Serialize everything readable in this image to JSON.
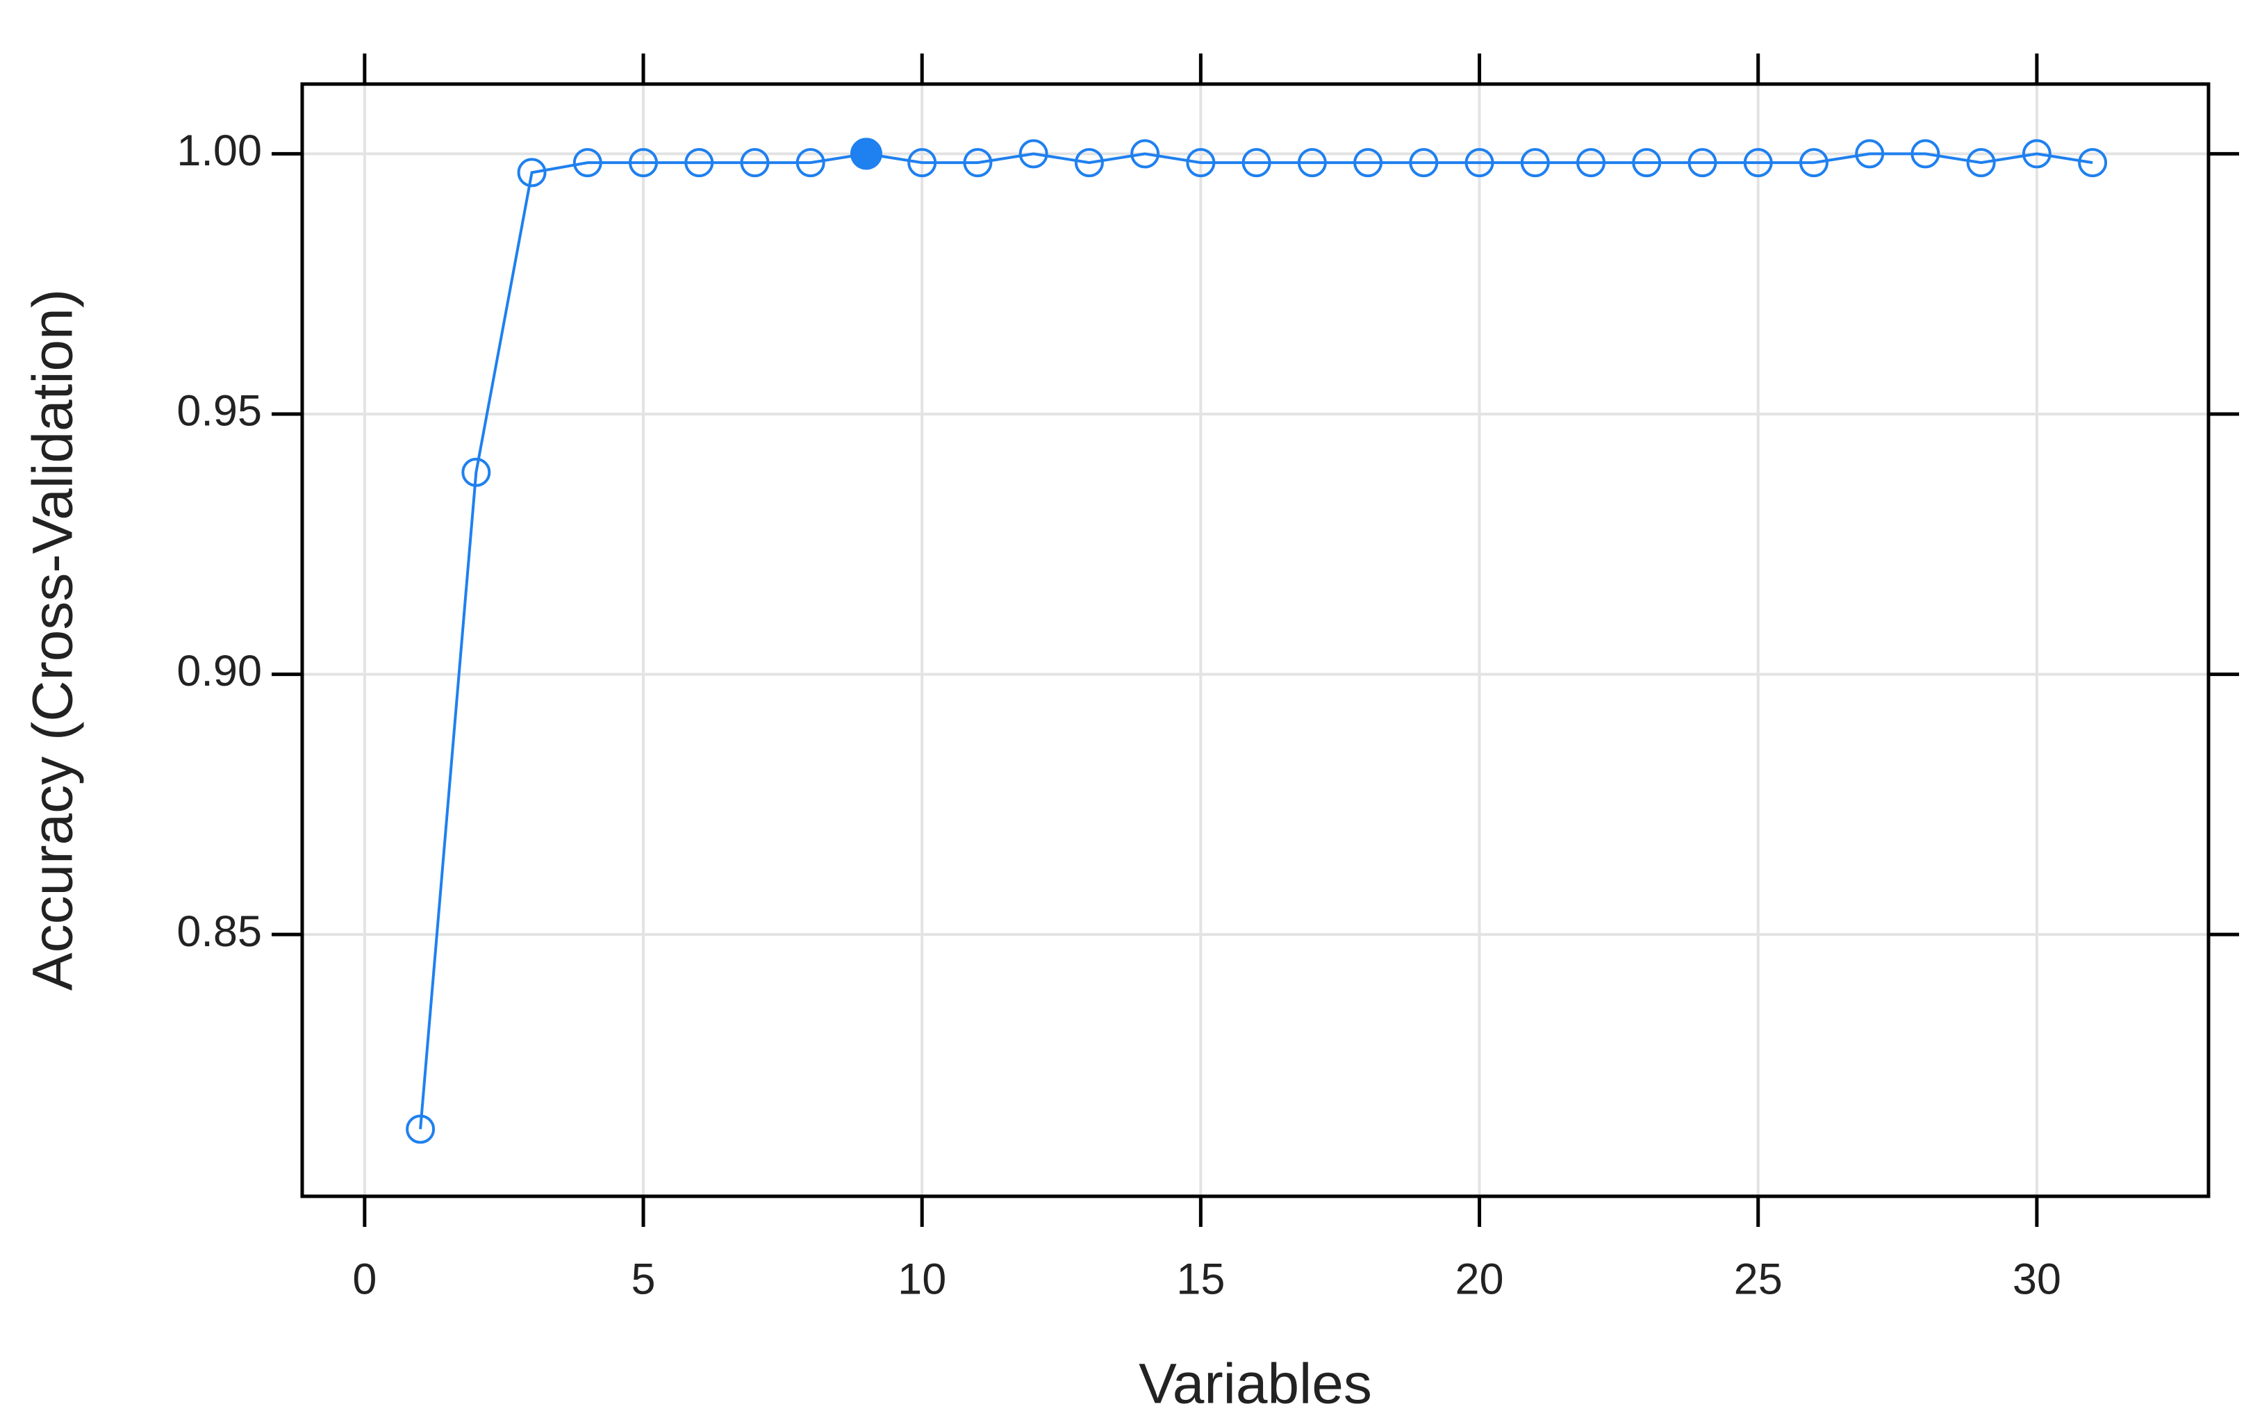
{
  "chart_data": {
    "type": "line",
    "x_label": "Variables",
    "y_label": "Accuracy (Cross-Validation)",
    "x": [
      1,
      2,
      3,
      4,
      5,
      6,
      7,
      8,
      9,
      10,
      11,
      12,
      13,
      14,
      15,
      16,
      17,
      18,
      19,
      20,
      21,
      22,
      23,
      24,
      25,
      26,
      27,
      28,
      29,
      30,
      31
    ],
    "series": [
      {
        "name": "Accuracy",
        "color": "#1f80ef",
        "values": [
          0.8126,
          0.9388,
          0.9964,
          0.9983,
          0.9983,
          0.9983,
          0.9983,
          0.9983,
          1.0,
          0.9983,
          0.9983,
          1.0,
          0.9983,
          1.0,
          0.9983,
          0.9983,
          0.9983,
          0.9983,
          0.9983,
          0.9983,
          0.9983,
          0.9983,
          0.9983,
          0.9983,
          0.9983,
          0.9983,
          1.0,
          1.0,
          0.9983,
          1.0,
          0.9983
        ],
        "selected_x": 9
      }
    ],
    "xlim": [
      -1.12,
      33.08
    ],
    "ylim": [
      0.7997,
      1.0134
    ],
    "xticks": [
      0,
      5,
      10,
      15,
      20,
      25,
      30
    ],
    "yticks": [
      {
        "value": 0.85,
        "label": "0.85"
      },
      {
        "value": 0.9,
        "label": "0.90"
      },
      {
        "value": 0.95,
        "label": "0.95"
      },
      {
        "value": 1.0,
        "label": "1.00"
      }
    ],
    "grid": true
  }
}
